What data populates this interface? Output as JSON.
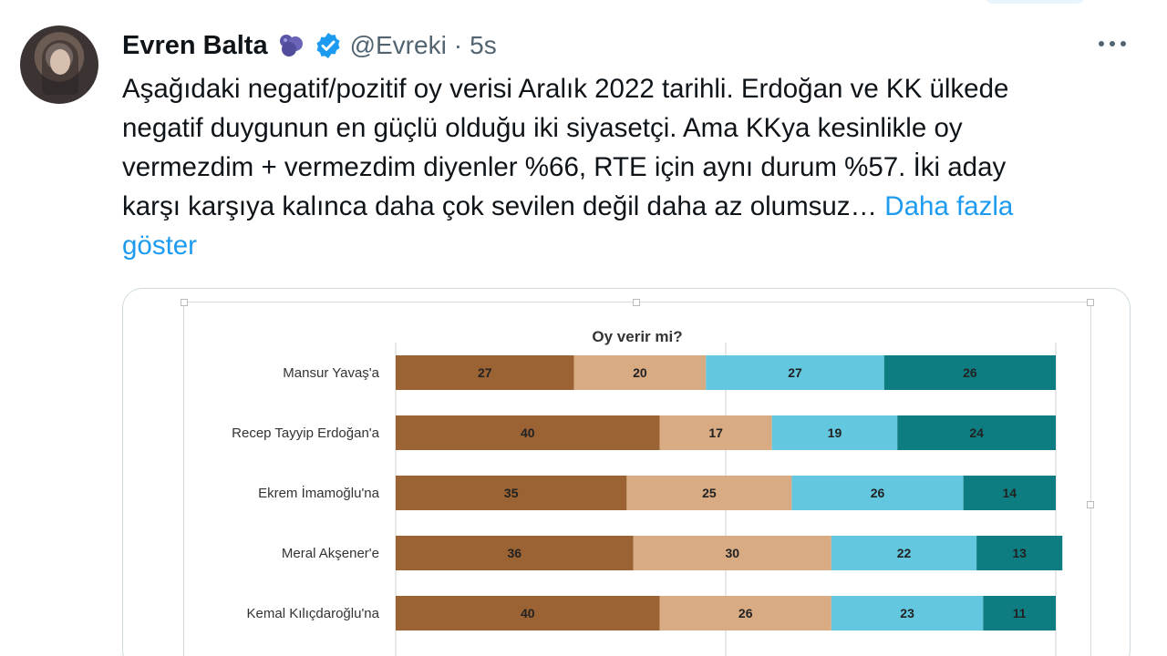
{
  "tweet": {
    "author_name": "Evren Balta",
    "handle": "@Evreki",
    "separator": "·",
    "time": "5s",
    "text_lines": [
      "Aşağıdaki negatif/pozitif oy verisi Aralık 2022 tarihli. Erdoğan ve KK ülkede",
      "negatif duygunun en güçlü olduğu iki siyasetçi. Ama KKya kesinlikle oy",
      "vermezdim + vermezdim diyenler %66, RTE için aynı durum %57. İki aday",
      "karşı karşıya kalınca daha çok sevilen değil daha az olumsuz…"
    ],
    "show_more_part1": "Daha fazla",
    "show_more_part2": "göster",
    "icons": {
      "avatar": "avatar-photo",
      "badge": "blob-emoji-icon",
      "verified": "verified-badge-icon",
      "more": "more-options-icon"
    },
    "colors": {
      "link": "#1d9bf0",
      "verified": "#1d9bf0",
      "muted": "#536471"
    }
  },
  "chart_data": {
    "type": "bar",
    "orientation": "horizontal-stacked-percent",
    "title": "Oy verir mi?",
    "categories": [
      "Mansur Yavaş'a",
      "Recep Tayyip Erdoğan'a",
      "Ekrem İmamoğlu'na",
      "Meral Akşener'e",
      "Kemal Kılıçdaroğlu'na"
    ],
    "series": [
      {
        "values": [
          27,
          40,
          35,
          36,
          40
        ],
        "color": "#9b6234",
        "label_color": "#222"
      },
      {
        "values": [
          20,
          17,
          25,
          30,
          26
        ],
        "color": "#d8ab83",
        "label_color": "#222"
      },
      {
        "values": [
          27,
          19,
          26,
          22,
          23
        ],
        "color": "#63c7df",
        "label_color": "#222"
      },
      {
        "values": [
          26,
          24,
          14,
          13,
          11
        ],
        "color": "#0d7d82",
        "label_color": "#222"
      }
    ],
    "xlim": [
      0,
      100
    ],
    "gridlines_at": [
      0,
      50,
      100
    ],
    "legend": "none visible"
  }
}
